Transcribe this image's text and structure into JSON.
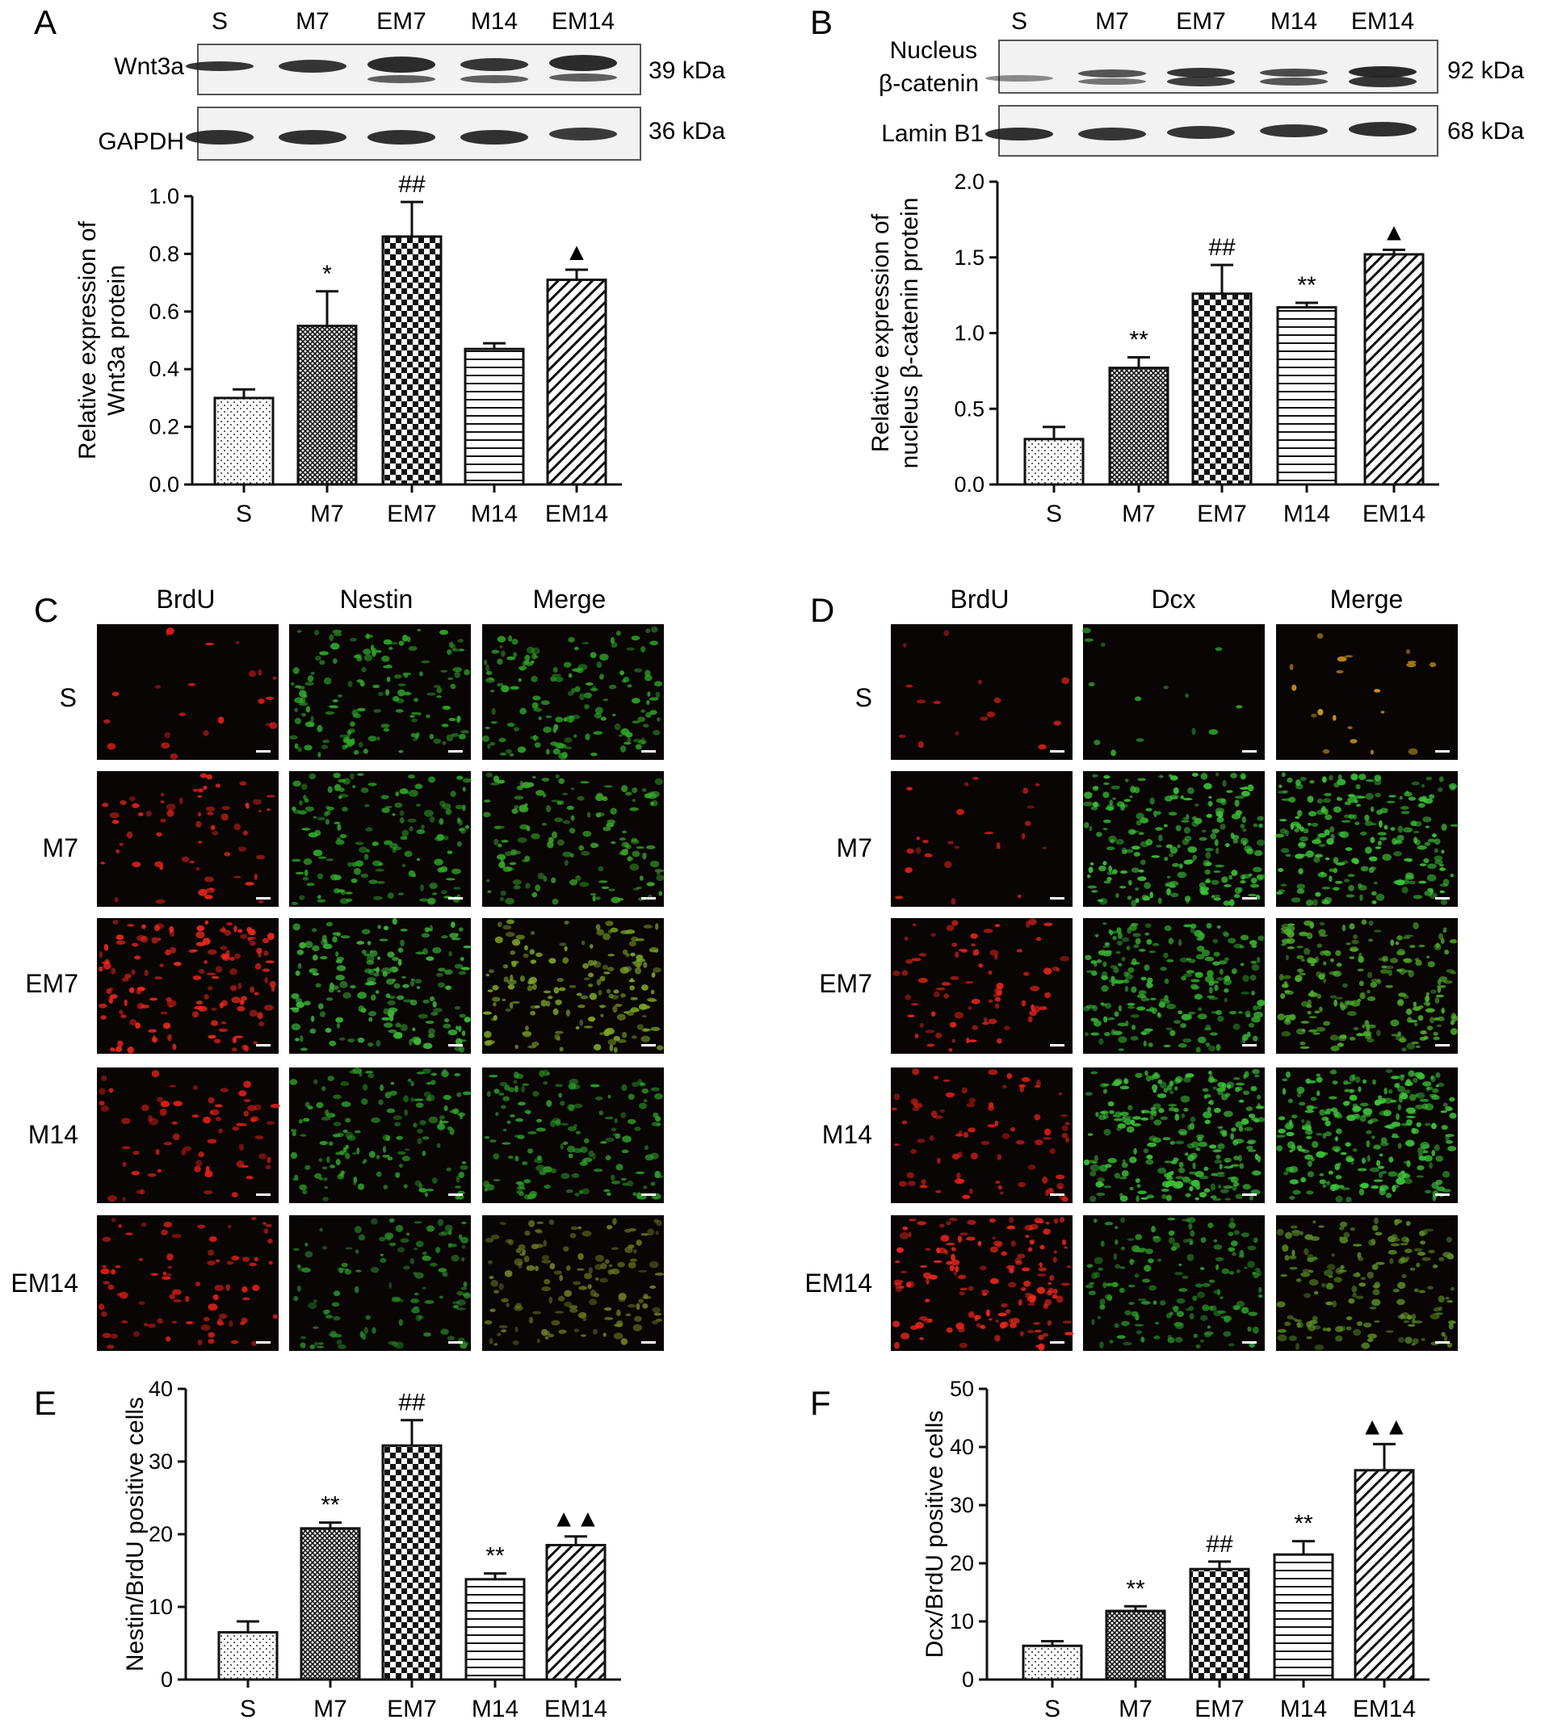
{
  "panels": {
    "A": {
      "letter": "A",
      "lanes": [
        "S",
        "M7",
        "EM7",
        "M14",
        "EM14"
      ],
      "blots": [
        {
          "name": "Wnt3a",
          "size": "39 kDa",
          "color": "#202020"
        },
        {
          "name": "GAPDH",
          "size": "36 kDa",
          "color": "#202020"
        }
      ]
    },
    "B": {
      "letter": "B",
      "lanes": [
        "S",
        "M7",
        "EM7",
        "M14",
        "EM14"
      ],
      "blots": [
        {
          "name": "Nucleus β-catenin",
          "name_lines": [
            "Nucleus",
            "β-catenin"
          ],
          "size": "92 kDa",
          "color": "#202020"
        },
        {
          "name": "Lamin B1",
          "size": "68 kDa",
          "color": "#202020"
        }
      ]
    },
    "C": {
      "letter": "C",
      "columns": [
        "BrdU",
        "Nestin",
        "Merge"
      ],
      "rows": [
        "S",
        "M7",
        "EM7",
        "M14",
        "EM14"
      ]
    },
    "D": {
      "letter": "D",
      "columns": [
        "BrdU",
        "Dcx",
        "Merge"
      ],
      "rows": [
        "S",
        "M7",
        "EM7",
        "M14",
        "EM14"
      ]
    },
    "E": {
      "letter": "E"
    },
    "F": {
      "letter": "F"
    }
  },
  "chart_data": [
    {
      "id": "A",
      "type": "bar",
      "categories": [
        "S",
        "M7",
        "EM7",
        "M14",
        "EM14"
      ],
      "values": [
        0.3,
        0.55,
        0.86,
        0.47,
        0.71
      ],
      "errors": [
        0.03,
        0.12,
        0.12,
        0.02,
        0.035
      ],
      "significance": [
        "",
        "*",
        "##",
        "",
        "▲"
      ],
      "ylabel_lines": [
        "Relative expression of",
        "Wnt3a protein"
      ],
      "ylim": [
        0,
        1.0
      ],
      "yticks": [
        "0.0",
        "0.2",
        "0.4",
        "0.6",
        "0.8",
        "1.0"
      ],
      "patterns": [
        "dots",
        "crosshatch",
        "checker",
        "hlines",
        "diag"
      ]
    },
    {
      "id": "B",
      "type": "bar",
      "categories": [
        "S",
        "M7",
        "EM7",
        "M14",
        "EM14"
      ],
      "values": [
        0.3,
        0.77,
        1.26,
        1.17,
        1.52
      ],
      "errors": [
        0.08,
        0.07,
        0.19,
        0.03,
        0.03
      ],
      "significance": [
        "",
        "**",
        "##",
        "**",
        "▲"
      ],
      "ylabel_lines": [
        "Relative expression of",
        "nucleus β-catenin protein"
      ],
      "ylim": [
        0,
        2.0
      ],
      "yticks": [
        "0.0",
        "0.5",
        "1.0",
        "1.5",
        "2.0"
      ],
      "patterns": [
        "dots",
        "crosshatch",
        "checker",
        "hlines",
        "diag"
      ]
    },
    {
      "id": "E",
      "type": "bar",
      "categories": [
        "S",
        "M7",
        "EM7",
        "M14",
        "EM14"
      ],
      "values": [
        6.5,
        20.8,
        32.2,
        13.8,
        18.5
      ],
      "errors": [
        1.5,
        0.8,
        3.5,
        0.8,
        1.2
      ],
      "significance": [
        "",
        "**",
        "##",
        "**",
        "▲▲"
      ],
      "ylabel_lines": [
        "Nestin/BrdU positive cells"
      ],
      "ylim": [
        0,
        40
      ],
      "yticks": [
        "0",
        "10",
        "20",
        "30",
        "40"
      ],
      "patterns": [
        "dots",
        "crosshatch",
        "checker",
        "hlines",
        "diag"
      ]
    },
    {
      "id": "F",
      "type": "bar",
      "categories": [
        "S",
        "M7",
        "EM7",
        "M14",
        "EM14"
      ],
      "values": [
        5.8,
        11.8,
        19.0,
        21.5,
        36.0
      ],
      "errors": [
        0.8,
        0.8,
        1.3,
        2.3,
        4.5
      ],
      "significance": [
        "",
        "**",
        "##",
        "**",
        "▲▲"
      ],
      "ylabel_lines": [
        "Dcx/BrdU positive cells"
      ],
      "ylim": [
        0,
        50
      ],
      "yticks": [
        "0",
        "10",
        "20",
        "30",
        "40",
        "50"
      ],
      "patterns": [
        "dots",
        "crosshatch",
        "checker",
        "hlines",
        "diag"
      ]
    }
  ],
  "micrographs": {
    "C": {
      "BrdU": [
        {
          "dens": 22,
          "color": "#e0201a"
        },
        {
          "dens": 65,
          "color": "#e8261e"
        },
        {
          "dens": 140,
          "color": "#f0281e"
        },
        {
          "dens": 70,
          "color": "#e02018"
        },
        {
          "dens": 80,
          "color": "#e02018"
        }
      ],
      "Nestin": [
        {
          "dens": 150,
          "color": "#2fa82a"
        },
        {
          "dens": 150,
          "color": "#2fa82a"
        },
        {
          "dens": 180,
          "color": "#3cb83a"
        },
        {
          "dens": 150,
          "color": "#2e9e2a"
        },
        {
          "dens": 120,
          "color": "#2a8a2a"
        }
      ],
      "Merge": [
        {
          "dens": 150,
          "color": "#2fa82a"
        },
        {
          "dens": 150,
          "color": "#3aa52a"
        },
        {
          "dens": 170,
          "color": "#7da52a"
        },
        {
          "dens": 150,
          "color": "#2e9e2a"
        },
        {
          "dens": 140,
          "color": "#6f7d25"
        }
      ]
    },
    "D": {
      "BrdU": [
        {
          "dens": 15,
          "color": "#e0201a"
        },
        {
          "dens": 25,
          "color": "#e0201a"
        },
        {
          "dens": 80,
          "color": "#e8261e"
        },
        {
          "dens": 80,
          "color": "#e02018"
        },
        {
          "dens": 150,
          "color": "#f0281e"
        }
      ],
      "Dcx": [
        {
          "dens": 14,
          "color": "#2fa82a"
        },
        {
          "dens": 220,
          "color": "#3cc53a"
        },
        {
          "dens": 220,
          "color": "#34b232"
        },
        {
          "dens": 260,
          "color": "#3cc53a"
        },
        {
          "dens": 160,
          "color": "#2c9a2a"
        }
      ],
      "Merge": [
        {
          "dens": 20,
          "color": "#d8a020"
        },
        {
          "dens": 220,
          "color": "#3cc53a"
        },
        {
          "dens": 220,
          "color": "#4fae2e"
        },
        {
          "dens": 260,
          "color": "#3cc53a"
        },
        {
          "dens": 170,
          "color": "#5a8d28"
        }
      ]
    },
    "background": "#0a0505"
  }
}
